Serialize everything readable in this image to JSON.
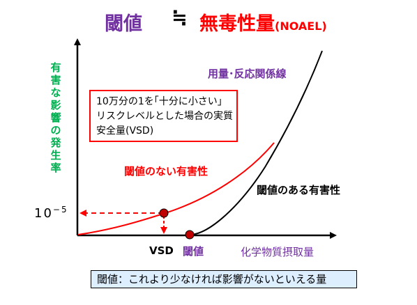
{
  "title": {
    "left": "閾値",
    "approx": "≒",
    "right": "無毒性量",
    "right_suffix": "(NOAEL)"
  },
  "y_axis_label": "有害な影響の発生率",
  "curves": {
    "dose_response": "用量･反応関係線",
    "no_threshold": "閾値のない有害性",
    "threshold": "閾値のある有害性"
  },
  "note_box": {
    "line1": "10万分の1を｢十分に小さい｣",
    "line2": "リスクレベルとした場合の実質",
    "line3": "安全量(VSD)"
  },
  "y_tick": {
    "base": "10",
    "exponent": "−5"
  },
  "x_labels": {
    "vsd": "VSD",
    "threshold": "閾値",
    "axis": "化学物質摂取量"
  },
  "bottom_note": "閾値：これより少なければ影響がないといえる量",
  "colors": {
    "purple": "#7030a0",
    "red": "#ff0000",
    "green": "#00b050",
    "black": "#000000",
    "box_fill": "#ddeeff"
  }
}
